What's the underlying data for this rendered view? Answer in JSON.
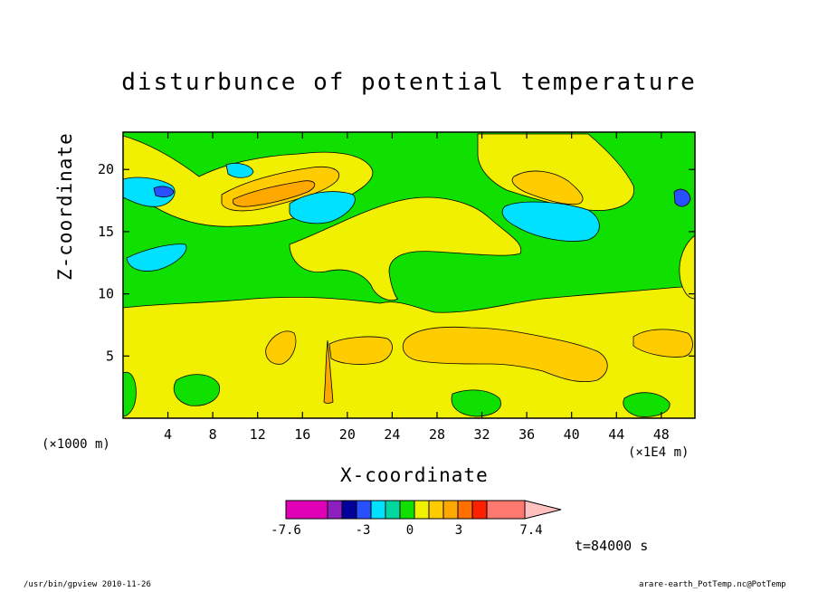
{
  "chart_data": {
    "type": "heatmap",
    "title": "disturbunce of potential temperature",
    "xlabel": "X-coordinate",
    "ylabel": "Z-coordinate",
    "x_unit": "(×1000 m)",
    "x_unit_secondary": "(×1E4 m)",
    "xlim": [
      0,
      51
    ],
    "ylim": [
      0,
      23
    ],
    "x_ticks": [
      4,
      8,
      12,
      16,
      20,
      24,
      28,
      32,
      36,
      40,
      44,
      48
    ],
    "y_ticks": [
      5,
      10,
      15,
      20
    ],
    "colorbar": {
      "colors": [
        "#e000b8",
        "#8e1fbf",
        "#00009a",
        "#2950ff",
        "#00e0ff",
        "#00d8a0",
        "#10e000",
        "#f0f000",
        "#ffcc00",
        "#ffa800",
        "#ff7000",
        "#ff2000",
        "#ff7870",
        "#ffc0c0"
      ],
      "tick_labels": [
        "-7.6",
        "-3",
        "0",
        "3",
        "7.4"
      ],
      "min": -7.6,
      "max": 7.4
    },
    "annotation_time": "t=84000 s"
  },
  "footer": {
    "left": "/usr/bin/gpview   2010-11-26",
    "right": "arare-earth_PotTemp.nc@PotTemp"
  }
}
